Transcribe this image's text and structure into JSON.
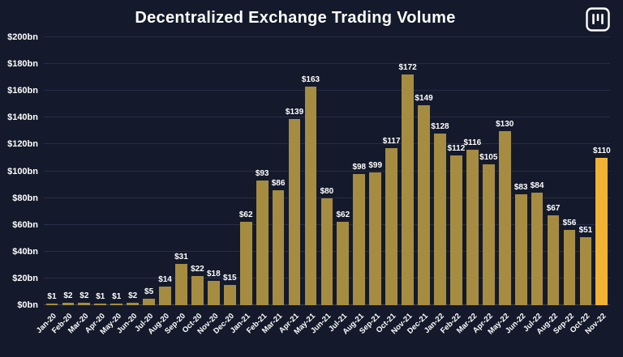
{
  "page": {
    "title": "Decentralized Exchange Trading Volume"
  },
  "logo": {
    "icon": "brand-logo-icon"
  },
  "chart_data": {
    "type": "bar",
    "title": "Decentralized Exchange Trading Volume",
    "categories": [
      "Jan-20",
      "Feb-20",
      "Mar-20",
      "Apr-20",
      "May-20",
      "Jun-20",
      "Jul-20",
      "Aug-20",
      "Sep-20",
      "Oct-20",
      "Nov-20",
      "Dec-20",
      "Jan-21",
      "Feb-21",
      "Mar-21",
      "Apr-21",
      "May-21",
      "Jun-21",
      "Jul-21",
      "Aug-21",
      "Sep-21",
      "Oct-21",
      "Nov-21",
      "Dec-21",
      "Jan-22",
      "Feb-22",
      "Mar-22",
      "Apr-22",
      "May-22",
      "Jun-22",
      "Jul-22",
      "Aug-22",
      "Sep-22",
      "Oct-22",
      "Nov-22"
    ],
    "values": [
      1,
      2,
      2,
      1,
      1,
      2,
      5,
      14,
      31,
      22,
      18,
      15,
      62,
      93,
      86,
      139,
      163,
      80,
      62,
      98,
      99,
      117,
      172,
      149,
      128,
      112,
      116,
      105,
      130,
      83,
      84,
      67,
      56,
      51,
      110
    ],
    "value_labels": [
      "$1",
      "$2",
      "$2",
      "$1",
      "$1",
      "$2",
      "$5",
      "$14",
      "$31",
      "$22",
      "$18",
      "$15",
      "$62",
      "$93",
      "$86",
      "$139",
      "$163",
      "$80",
      "$62",
      "$98",
      "$99",
      "$117",
      "$172",
      "$149",
      "$128",
      "$112",
      "$116",
      "$105",
      "$130",
      "$83",
      "$84",
      "$67",
      "$56",
      "$51",
      "$110"
    ],
    "y_ticks": [
      {
        "value": 0,
        "label": "$0bn"
      },
      {
        "value": 20,
        "label": "$20bn"
      },
      {
        "value": 40,
        "label": "$40bn"
      },
      {
        "value": 60,
        "label": "$60bn"
      },
      {
        "value": 80,
        "label": "$80bn"
      },
      {
        "value": 100,
        "label": "$100bn"
      },
      {
        "value": 120,
        "label": "$120bn"
      },
      {
        "value": 140,
        "label": "$140bn"
      },
      {
        "value": 160,
        "label": "$160bn"
      },
      {
        "value": 180,
        "label": "$180bn"
      },
      {
        "value": 200,
        "label": "$200bn"
      }
    ],
    "ylim": [
      0,
      200
    ],
    "xlabel": "",
    "ylabel": "",
    "grid": true,
    "legend": "none",
    "bar_color": "#a68c41",
    "highlight_color": "#f2b234",
    "highlight_index": 34,
    "background_color": "#141a2b",
    "gridline_color": "#262d46",
    "text_color": "#ffffff"
  }
}
